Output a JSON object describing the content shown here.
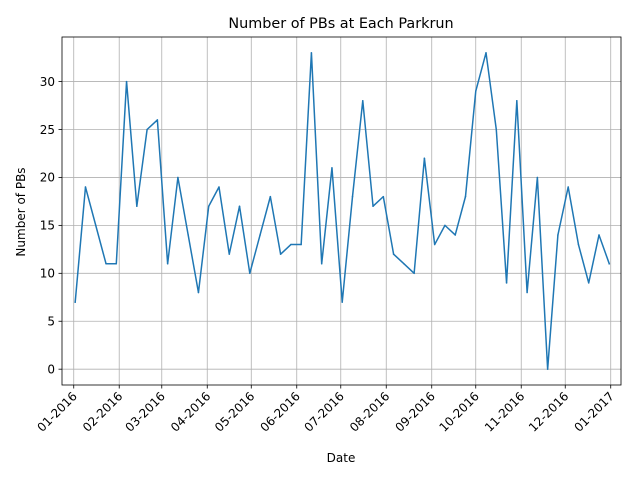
{
  "chart_data": {
    "type": "line",
    "title": "Number of PBs at Each Parkrun",
    "xlabel": "Date",
    "ylabel": "Number of PBs",
    "grid": true,
    "x_ticks": [
      "01-2016",
      "02-2016",
      "03-2016",
      "04-2016",
      "05-2016",
      "06-2016",
      "07-2016",
      "08-2016",
      "09-2016",
      "10-2016",
      "11-2016",
      "12-2016",
      "01-2017"
    ],
    "y_ticks": [
      0,
      5,
      10,
      15,
      20,
      25,
      30
    ],
    "xlim": [
      "2015-12-24",
      "2017-01-08"
    ],
    "ylim": [
      -1.65,
      34.65
    ],
    "series": [
      {
        "color": "#1f77b4",
        "x": [
          "2016-01-02",
          "2016-01-09",
          "2016-01-16",
          "2016-01-23",
          "2016-01-30",
          "2016-02-06",
          "2016-02-13",
          "2016-02-20",
          "2016-02-27",
          "2016-03-05",
          "2016-03-12",
          "2016-03-19",
          "2016-03-26",
          "2016-04-02",
          "2016-04-09",
          "2016-04-16",
          "2016-04-23",
          "2016-04-30",
          "2016-05-07",
          "2016-05-14",
          "2016-05-21",
          "2016-05-28",
          "2016-06-04",
          "2016-06-11",
          "2016-06-18",
          "2016-06-25",
          "2016-07-02",
          "2016-07-09",
          "2016-07-16",
          "2016-07-23",
          "2016-07-30",
          "2016-08-06",
          "2016-08-13",
          "2016-08-20",
          "2016-08-27",
          "2016-09-03",
          "2016-09-10",
          "2016-09-17",
          "2016-09-24",
          "2016-10-01",
          "2016-10-08",
          "2016-10-15",
          "2016-10-22",
          "2016-10-29",
          "2016-11-05",
          "2016-11-12",
          "2016-11-19",
          "2016-11-26",
          "2016-12-03",
          "2016-12-10",
          "2016-12-17",
          "2016-12-24",
          "2016-12-31"
        ],
        "values": [
          7,
          19,
          15,
          11,
          11,
          30,
          17,
          25,
          26,
          11,
          20,
          14,
          8,
          17,
          19,
          12,
          17,
          10,
          14,
          18,
          12,
          13,
          13,
          33,
          11,
          21,
          7,
          18,
          28,
          17,
          18,
          12,
          11,
          10,
          22,
          13,
          15,
          14,
          18,
          29,
          33,
          25,
          9,
          28,
          8,
          20,
          0,
          14,
          19,
          13,
          9,
          14,
          11
        ]
      }
    ]
  }
}
